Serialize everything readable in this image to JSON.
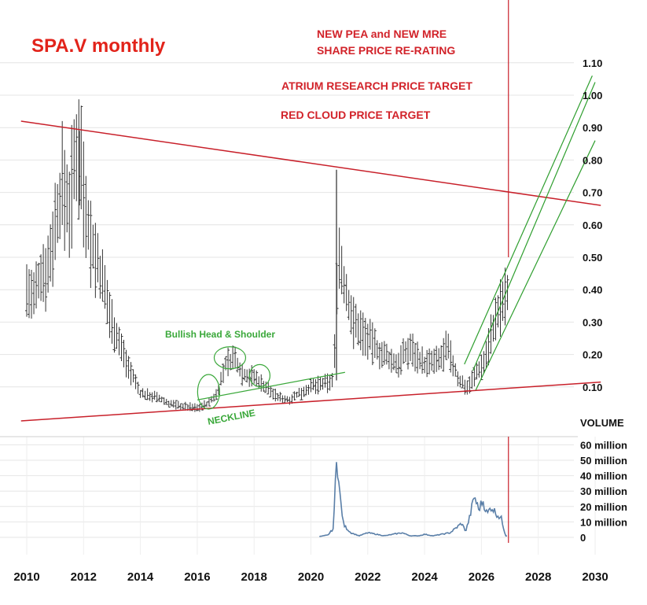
{
  "chart_data": [
    {
      "type": "candlestick",
      "title": "SPA.V  monthly",
      "annotations": {
        "pea_mre": "NEW PEA and NEW MRE",
        "rerating": "SHARE PRICE RE-RATING",
        "atrium": "ATRIUM RESEARCH PRICE TARGET",
        "red_cloud": "RED CLOUD PRICE TARGET",
        "head_shoulder": "Bullish Head & Shoulder",
        "neckline": "NECKLINE"
      },
      "x_ticks": [
        "2010",
        "2012",
        "2014",
        "2016",
        "2018",
        "2020",
        "2022",
        "2024",
        "2026",
        "2028",
        "2030"
      ],
      "xlim": [
        2009.8,
        2030.2
      ],
      "y_ticks": [
        "0.10",
        "0.20",
        "0.30",
        "0.40",
        "0.50",
        "0.60",
        "0.70",
        "0.80",
        "0.90",
        "1.00",
        "1.10"
      ],
      "ylim": [
        0.0,
        1.12
      ],
      "price_anchors": [
        [
          2010.0,
          0.4
        ],
        [
          2010.25,
          0.37
        ],
        [
          2010.5,
          0.45
        ],
        [
          2010.75,
          0.47
        ],
        [
          2011.0,
          0.6
        ],
        [
          2011.25,
          0.72
        ],
        [
          2011.5,
          0.66
        ],
        [
          2011.75,
          0.82
        ],
        [
          2011.85,
          0.86
        ],
        [
          2012.0,
          0.72
        ],
        [
          2012.25,
          0.55
        ],
        [
          2012.5,
          0.48
        ],
        [
          2013.0,
          0.3
        ],
        [
          2013.5,
          0.18
        ],
        [
          2014.0,
          0.08
        ],
        [
          2014.5,
          0.07
        ],
        [
          2015.0,
          0.05
        ],
        [
          2015.5,
          0.04
        ],
        [
          2016.0,
          0.035
        ],
        [
          2016.4,
          0.05
        ],
        [
          2016.7,
          0.08
        ],
        [
          2017.0,
          0.17
        ],
        [
          2017.3,
          0.19
        ],
        [
          2017.6,
          0.14
        ],
        [
          2018.0,
          0.13
        ],
        [
          2018.4,
          0.1
        ],
        [
          2018.8,
          0.07
        ],
        [
          2019.2,
          0.06
        ],
        [
          2019.6,
          0.08
        ],
        [
          2020.0,
          0.1
        ],
        [
          2020.5,
          0.11
        ],
        [
          2020.8,
          0.12
        ],
        [
          2020.95,
          0.52
        ],
        [
          2021.2,
          0.4
        ],
        [
          2021.5,
          0.3
        ],
        [
          2022.0,
          0.25
        ],
        [
          2022.5,
          0.2
        ],
        [
          2023.0,
          0.17
        ],
        [
          2023.5,
          0.22
        ],
        [
          2024.0,
          0.17
        ],
        [
          2024.5,
          0.18
        ],
        [
          2024.8,
          0.22
        ],
        [
          2025.2,
          0.12
        ],
        [
          2025.5,
          0.1
        ],
        [
          2025.8,
          0.14
        ],
        [
          2026.1,
          0.18
        ],
        [
          2026.4,
          0.28
        ],
        [
          2026.7,
          0.35
        ],
        [
          2026.9,
          0.38
        ]
      ],
      "spike_high": [
        2020.9,
        0.77
      ],
      "top_high": [
        2011.85,
        0.89
      ],
      "resistance_line": [
        [
          2009.8,
          0.92
        ],
        [
          2030.2,
          0.66
        ]
      ],
      "support_line": [
        [
          2009.8,
          -0.005
        ],
        [
          2030.2,
          0.115
        ]
      ],
      "neckline": [
        [
          2016.0,
          0.06
        ],
        [
          2021.2,
          0.145
        ]
      ],
      "channel_upper_1": [
        [
          2025.4,
          0.17
        ],
        [
          2029.9,
          1.06
        ]
      ],
      "channel_upper_2": [
        [
          2025.7,
          0.15
        ],
        [
          2030.0,
          1.04
        ]
      ],
      "channel_lower": [
        [
          2025.8,
          0.09
        ],
        [
          2030.0,
          0.86
        ]
      ],
      "vertical_marker_x": 2026.95,
      "vertical_marker_top_price": 0.5
    },
    {
      "type": "line",
      "ylabel": "VOLUME",
      "y_ticks": [
        "60 million",
        "50 million",
        "40 million",
        "30 million",
        "20 million",
        "10 million",
        "0"
      ],
      "ylim": [
        0,
        60
      ],
      "x_range": [
        2020.3,
        2026.9
      ],
      "volume_anchors": [
        [
          2020.3,
          0.5
        ],
        [
          2020.6,
          1.5
        ],
        [
          2020.8,
          6
        ],
        [
          2020.9,
          56
        ],
        [
          2021.0,
          30
        ],
        [
          2021.15,
          8
        ],
        [
          2021.4,
          3
        ],
        [
          2021.7,
          1
        ],
        [
          2022.0,
          3
        ],
        [
          2022.3,
          2
        ],
        [
          2022.6,
          1
        ],
        [
          2022.9,
          2
        ],
        [
          2023.2,
          3
        ],
        [
          2023.5,
          1
        ],
        [
          2023.8,
          1
        ],
        [
          2024.0,
          2
        ],
        [
          2024.3,
          1
        ],
        [
          2024.6,
          2
        ],
        [
          2024.9,
          3
        ],
        [
          2025.1,
          6
        ],
        [
          2025.3,
          9
        ],
        [
          2025.45,
          4
        ],
        [
          2025.6,
          14
        ],
        [
          2025.75,
          27
        ],
        [
          2025.9,
          18
        ],
        [
          2026.05,
          24
        ],
        [
          2026.2,
          15
        ],
        [
          2026.35,
          20
        ],
        [
          2026.5,
          16
        ],
        [
          2026.7,
          12
        ],
        [
          2026.85,
          1
        ]
      ]
    }
  ]
}
